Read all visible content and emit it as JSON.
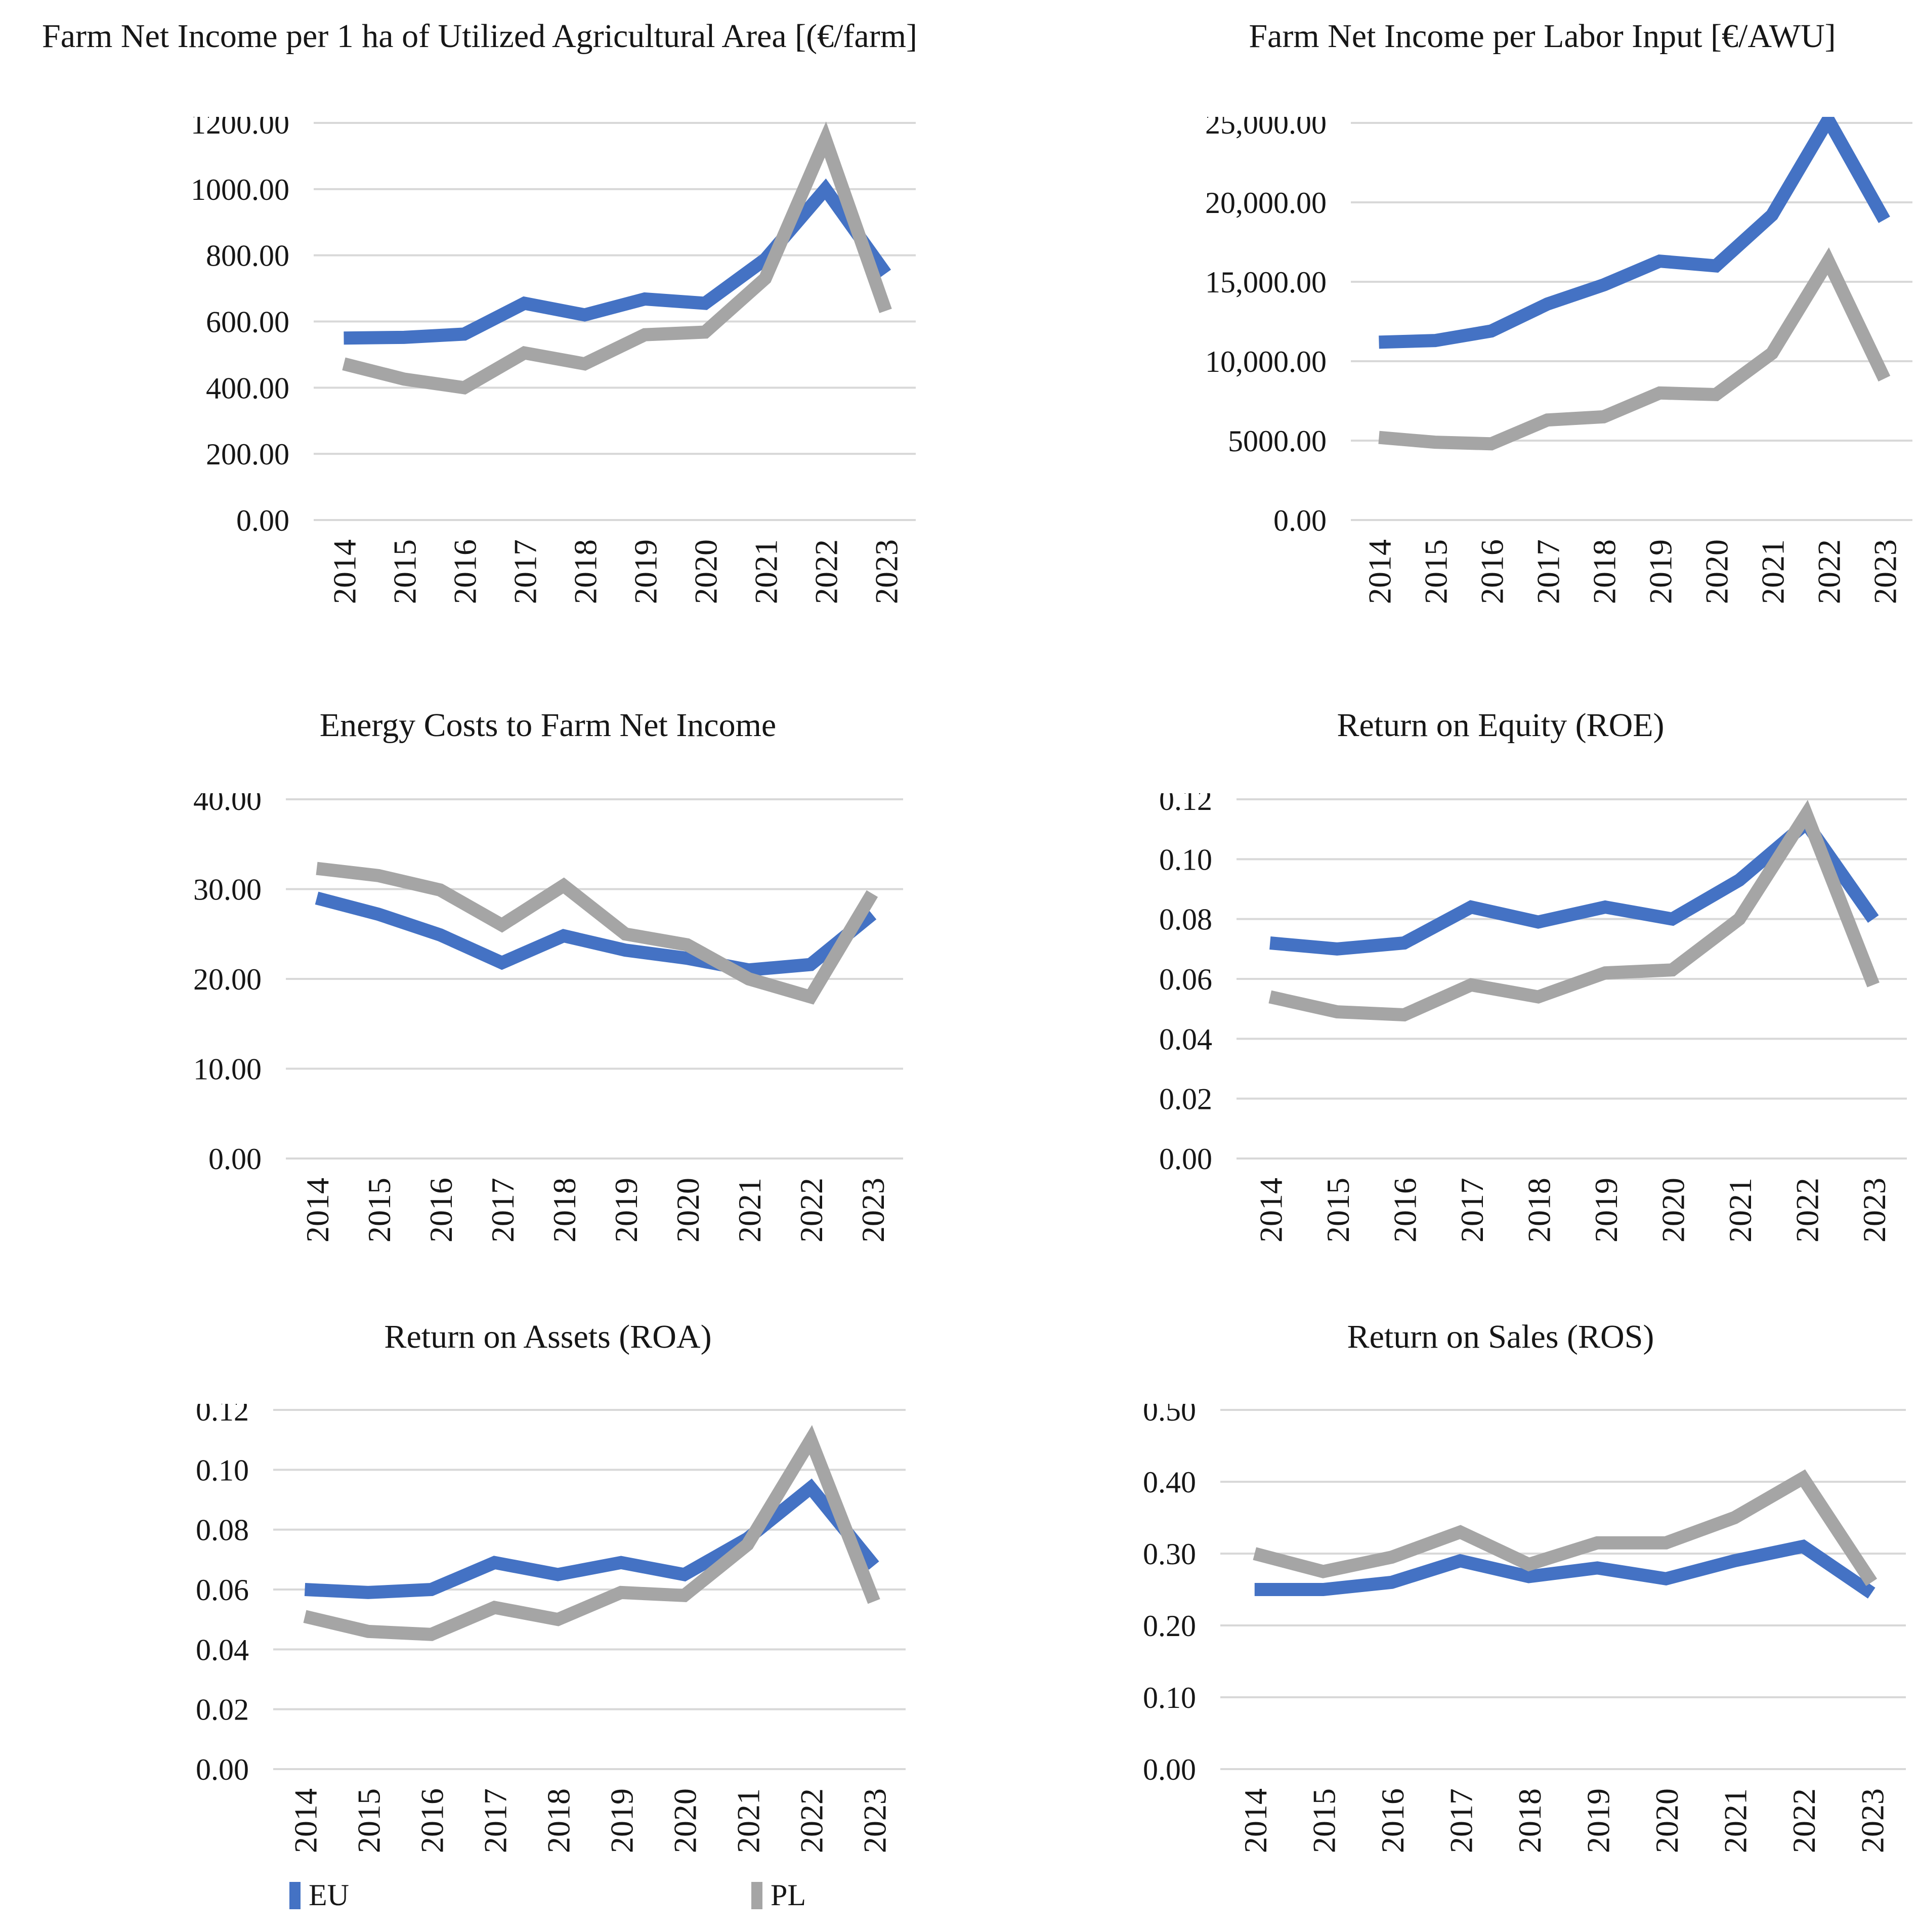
{
  "figure": {
    "description_visible_text_only": true
  },
  "colors": {
    "eu_series": "#4472C4",
    "pl_series": "#A5A5A5",
    "gridline": "#D8D8D8",
    "text": "#161616"
  },
  "legend": {
    "position": "bottom-left",
    "items": [
      {
        "label": "EU",
        "color": "#4472C4"
      },
      {
        "label": "PL",
        "color": "#A5A5A5"
      }
    ]
  },
  "chart_data": [
    {
      "type": "line",
      "title": "Farm Net Income per 1 ha of Utilized Agricultural Area [(€/farm]",
      "categories": [
        "2014",
        "2015",
        "2016",
        "2017",
        "2018",
        "2019",
        "2020",
        "2021",
        "2022",
        "2023"
      ],
      "y_ticks": [
        "1200.00",
        "1000.00",
        "800.00",
        "600.00",
        "400.00",
        "200.00",
        "0.00"
      ],
      "ylim": [
        0,
        1200
      ],
      "grid": true,
      "series": [
        {
          "name": "EU",
          "values": [
            550,
            552,
            562,
            655,
            620,
            668,
            655,
            788,
            1000,
            745
          ]
        },
        {
          "name": "PL",
          "values": [
            472,
            426,
            400,
            505,
            472,
            560,
            568,
            730,
            1150,
            632
          ]
        }
      ]
    },
    {
      "type": "line",
      "title": "Farm Net Income per Labor Input [€/AWU]",
      "categories": [
        "2014",
        "2015",
        "2016",
        "2017",
        "2018",
        "2019",
        "2020",
        "2021",
        "2022",
        "2023"
      ],
      "y_ticks": [
        "25,000.00",
        "20,000.00",
        "15,000.00",
        "10,000.00",
        "5000.00",
        "0.00"
      ],
      "ylim": [
        0,
        25000
      ],
      "grid": true,
      "series": [
        {
          "name": "EU",
          "values": [
            11200,
            11300,
            11900,
            13600,
            14800,
            16300,
            16000,
            19200,
            25200,
            18900
          ]
        },
        {
          "name": "PL",
          "values": [
            5200,
            4900,
            4800,
            6300,
            6500,
            8000,
            7900,
            10500,
            16300,
            8900
          ]
        }
      ]
    },
    {
      "type": "line",
      "title": "Energy Costs to Farm Net Income",
      "categories": [
        "2014",
        "2015",
        "2016",
        "2017",
        "2018",
        "2019",
        "2020",
        "2021",
        "2022",
        "2023"
      ],
      "y_ticks": [
        "40.00",
        "30.00",
        "20.00",
        "10.00",
        "0.00"
      ],
      "ylim": [
        0,
        40
      ],
      "grid": true,
      "series": [
        {
          "name": "EU",
          "values": [
            29.0,
            27.2,
            24.9,
            21.8,
            24.8,
            23.2,
            22.3,
            21.0,
            21.6,
            27.2
          ]
        },
        {
          "name": "PL",
          "values": [
            32.3,
            31.5,
            29.9,
            26.0,
            30.4,
            25.0,
            23.8,
            20.0,
            18.0,
            29.5
          ]
        }
      ]
    },
    {
      "type": "line",
      "title": "Return on Equity (ROE)",
      "categories": [
        "2014",
        "2015",
        "2016",
        "2017",
        "2018",
        "2019",
        "2020",
        "2021",
        "2022",
        "2023"
      ],
      "y_ticks": [
        "0.12",
        "0.10",
        "0.08",
        "0.06",
        "0.04",
        "0.02",
        "0.00"
      ],
      "ylim": [
        0,
        0.12
      ],
      "grid": true,
      "series": [
        {
          "name": "EU",
          "values": [
            0.072,
            0.07,
            0.072,
            0.084,
            0.079,
            0.084,
            0.08,
            0.093,
            0.112,
            0.08
          ]
        },
        {
          "name": "PL",
          "values": [
            0.054,
            0.049,
            0.048,
            0.058,
            0.054,
            0.062,
            0.063,
            0.08,
            0.115,
            0.058
          ]
        }
      ]
    },
    {
      "type": "line",
      "title": "Return on Assets (ROA)",
      "categories": [
        "2014",
        "2015",
        "2016",
        "2017",
        "2018",
        "2019",
        "2020",
        "2021",
        "2022",
        "2023"
      ],
      "y_ticks": [
        "0.12",
        "0.10",
        "0.08",
        "0.06",
        "0.04",
        "0.02",
        "0.00"
      ],
      "ylim": [
        0,
        0.12
      ],
      "grid": true,
      "series": [
        {
          "name": "EU",
          "values": [
            0.06,
            0.059,
            0.06,
            0.069,
            0.065,
            0.069,
            0.065,
            0.077,
            0.094,
            0.068
          ]
        },
        {
          "name": "PL",
          "values": [
            0.051,
            0.046,
            0.045,
            0.054,
            0.05,
            0.059,
            0.058,
            0.075,
            0.11,
            0.056
          ]
        }
      ]
    },
    {
      "type": "line",
      "title": "Return on Sales (ROS)",
      "categories": [
        "2014",
        "2015",
        "2016",
        "2017",
        "2018",
        "2019",
        "2020",
        "2021",
        "2022",
        "2023"
      ],
      "y_ticks": [
        "0.50",
        "0.40",
        "0.30",
        "0.20",
        "0.10",
        "0.00"
      ],
      "ylim": [
        0,
        0.5
      ],
      "grid": true,
      "series": [
        {
          "name": "EU",
          "values": [
            0.25,
            0.25,
            0.26,
            0.29,
            0.268,
            0.28,
            0.265,
            0.29,
            0.31,
            0.245
          ]
        },
        {
          "name": "PL",
          "values": [
            0.3,
            0.275,
            0.295,
            0.33,
            0.285,
            0.315,
            0.315,
            0.35,
            0.405,
            0.26
          ]
        }
      ]
    }
  ]
}
